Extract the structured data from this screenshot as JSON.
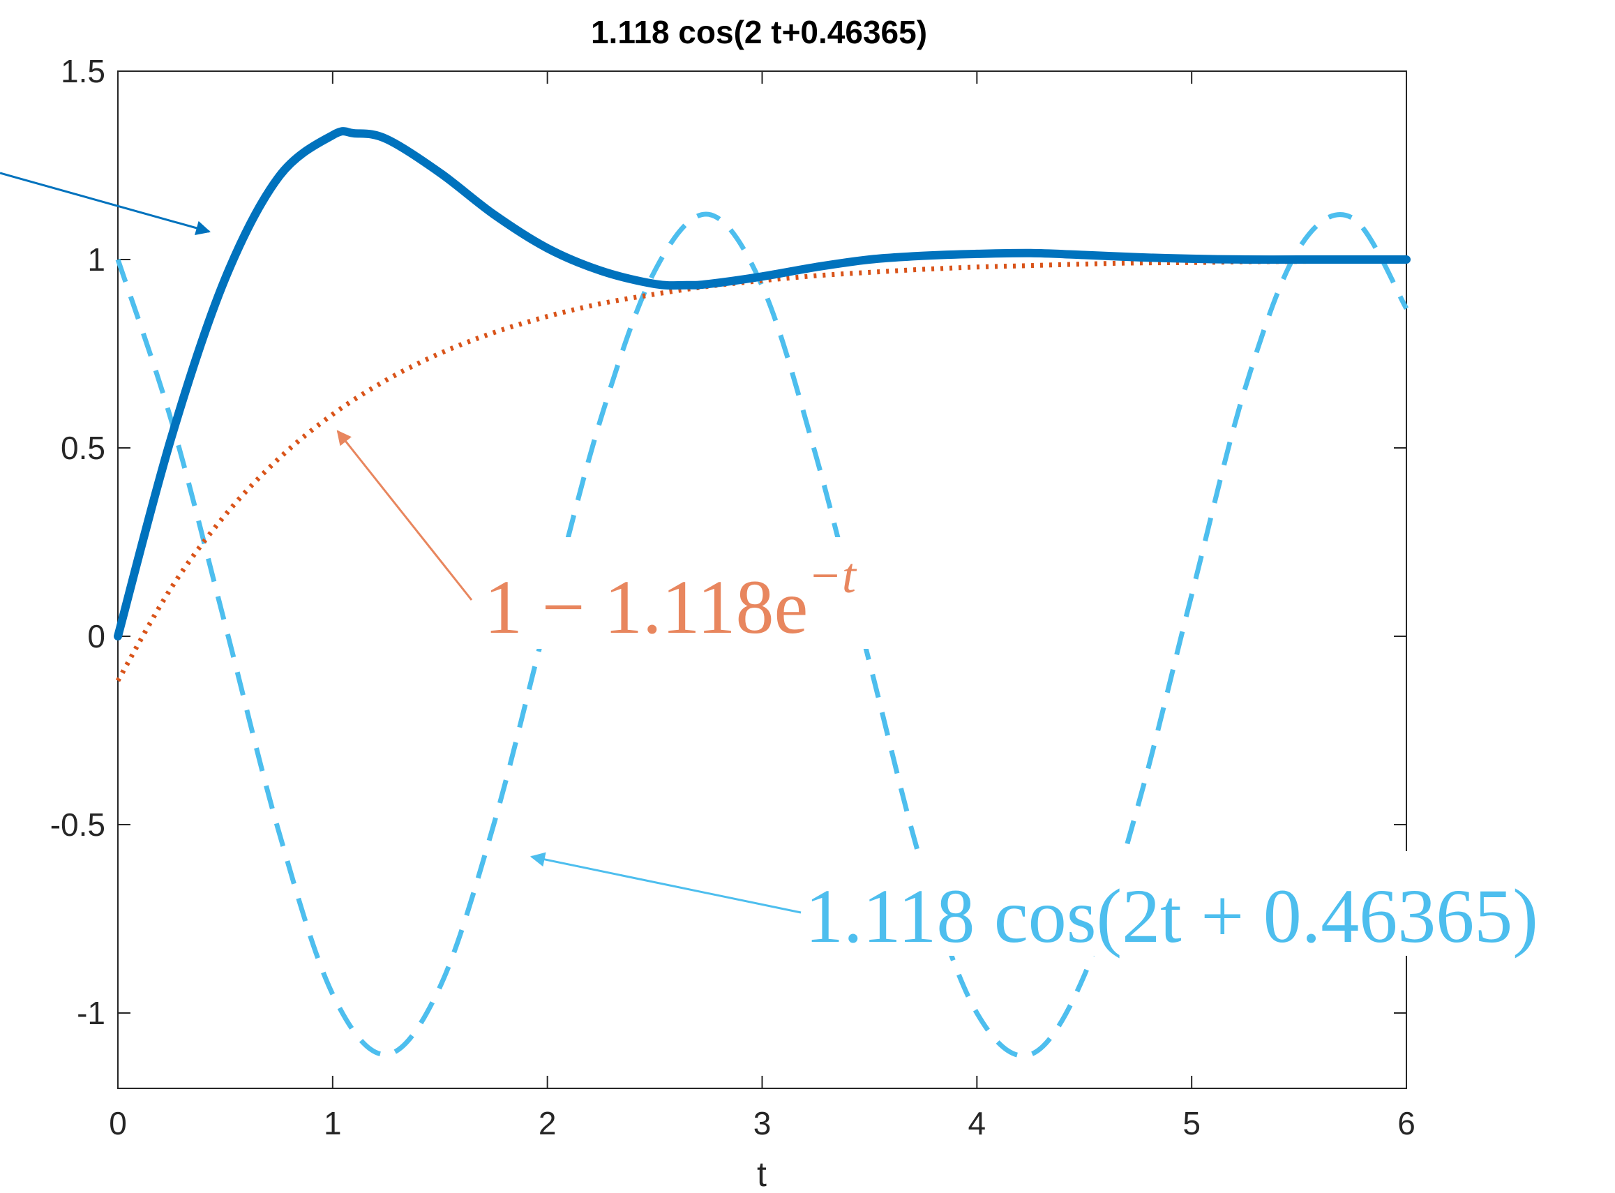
{
  "chart_data": {
    "type": "line",
    "title": "1.118 cos(2 t+0.46365)",
    "xlabel": "t",
    "ylabel": "",
    "xlim": [
      0,
      6
    ],
    "ylim": [
      -1.2,
      1.5
    ],
    "xticks": [
      0,
      1,
      2,
      3,
      4,
      5,
      6
    ],
    "yticks": [
      -1,
      -0.5,
      0,
      0.5,
      1,
      1.5
    ],
    "xtick_labels": [
      "0",
      "1",
      "2",
      "3",
      "4",
      "5",
      "6"
    ],
    "ytick_labels": [
      "-1",
      "-0.5",
      "0",
      "0.5",
      "1",
      "1.5"
    ],
    "grid": false,
    "series": [
      {
        "style": "solid",
        "color": "#0072BD",
        "x": [
          0,
          0.25,
          0.5,
          0.75,
          1,
          1.1,
          1.25,
          1.5,
          1.75,
          2,
          2.25,
          2.5,
          2.65,
          2.75,
          3,
          3.25,
          3.5,
          3.75,
          4,
          4.25,
          4.5,
          4.75,
          5,
          5.25,
          5.5,
          5.75,
          6
        ],
        "y": [
          0,
          0.53,
          0.95,
          1.22,
          1.33,
          1.335,
          1.32,
          1.23,
          1.12,
          1.03,
          0.97,
          0.935,
          0.932,
          0.935,
          0.955,
          0.98,
          1.0,
          1.01,
          1.015,
          1.017,
          1.012,
          1.006,
          1.002,
          1.0,
          1.0,
          1.0,
          1.0
        ]
      },
      {
        "style": "dotted",
        "color": "#D95319",
        "x": [
          0,
          0.25,
          0.5,
          0.75,
          1,
          1.25,
          1.5,
          1.75,
          2,
          2.25,
          2.5,
          2.75,
          3,
          3.25,
          3.5,
          3.75,
          4,
          4.25,
          4.5,
          4.75,
          5,
          5.25,
          5.5,
          5.75,
          6
        ],
        "y": [
          -0.118,
          0.13,
          0.322,
          0.472,
          0.589,
          0.68,
          0.751,
          0.806,
          0.849,
          0.883,
          0.908,
          0.929,
          0.944,
          0.957,
          0.966,
          0.974,
          0.98,
          0.984,
          0.988,
          0.991,
          0.992,
          0.994,
          0.995,
          0.996,
          0.997
        ]
      },
      {
        "style": "dashed",
        "color": "#4DBEEE",
        "x": [
          0,
          0.25,
          0.5,
          0.75,
          1,
          1.25,
          1.5,
          1.75,
          2,
          2.25,
          2.5,
          2.75,
          3,
          3.25,
          3.5,
          3.75,
          4,
          4.25,
          4.5,
          4.75,
          5,
          5.25,
          5.5,
          5.75,
          6
        ],
        "y": [
          1.0,
          0.57,
          0.03,
          -0.52,
          -0.95,
          -1.11,
          -0.93,
          -0.5,
          0.05,
          0.58,
          0.97,
          1.12,
          0.93,
          0.48,
          -0.07,
          -0.62,
          -1.0,
          -1.11,
          -0.9,
          -0.45,
          0.11,
          0.66,
          1.03,
          1.11,
          0.87
        ]
      }
    ],
    "annotations": [
      {
        "text": "1 − 1.118e",
        "superscript": "−t",
        "color": "#E8865E"
      },
      {
        "text": "1.118 cos(2t + 0.46365)",
        "color": "#4DBEEE"
      }
    ]
  }
}
